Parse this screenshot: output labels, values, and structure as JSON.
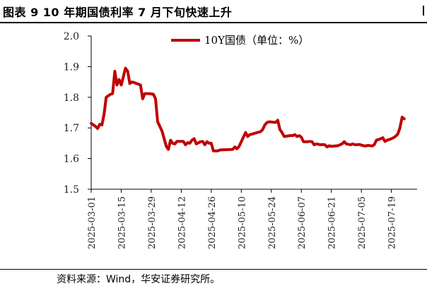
{
  "header": {
    "title": "图表 9 10 年期国债利率 7 月下旬快速上升"
  },
  "footer": {
    "source": "资料来源：Wind，华安证券研究所。"
  },
  "colors": {
    "series": "#c00000",
    "axis": "#000000",
    "text": "#222222"
  },
  "chart_data": {
    "type": "line",
    "legend_position": "top",
    "grid": false,
    "ylim": [
      1.5,
      2.0
    ],
    "yticks": [
      "1.5",
      "1.6",
      "1.7",
      "1.8",
      "1.9",
      "2.0"
    ],
    "xticks": [
      "2025-03-01",
      "2025-03-15",
      "2025-03-29",
      "2025-04-12",
      "2025-04-26",
      "2025-05-10",
      "2025-05-24",
      "2025-06-07",
      "2025-06-21",
      "2025-07-05",
      "2025-07-19"
    ],
    "series": [
      {
        "name": "10Y国债（单位：%）",
        "points": [
          [
            "2025-03-01",
            1.715
          ],
          [
            "2025-03-03",
            1.705
          ],
          [
            "2025-03-04",
            1.698
          ],
          [
            "2025-03-05",
            1.712
          ],
          [
            "2025-03-06",
            1.71
          ],
          [
            "2025-03-07",
            1.745
          ],
          [
            "2025-03-08",
            1.8
          ],
          [
            "2025-03-10",
            1.81
          ],
          [
            "2025-03-11",
            1.812
          ],
          [
            "2025-03-12",
            1.885
          ],
          [
            "2025-03-13",
            1.84
          ],
          [
            "2025-03-14",
            1.858
          ],
          [
            "2025-03-15",
            1.84
          ],
          [
            "2025-03-17",
            1.895
          ],
          [
            "2025-03-18",
            1.885
          ],
          [
            "2025-03-19",
            1.845
          ],
          [
            "2025-03-20",
            1.85
          ],
          [
            "2025-03-21",
            1.848
          ],
          [
            "2025-03-24",
            1.84
          ],
          [
            "2025-03-25",
            1.795
          ],
          [
            "2025-03-26",
            1.812
          ],
          [
            "2025-03-28",
            1.812
          ],
          [
            "2025-03-30",
            1.81
          ],
          [
            "2025-03-31",
            1.795
          ],
          [
            "2025-04-01",
            1.72
          ],
          [
            "2025-04-03",
            1.69
          ],
          [
            "2025-04-05",
            1.64
          ],
          [
            "2025-04-06",
            1.63
          ],
          [
            "2025-04-07",
            1.66
          ],
          [
            "2025-04-08",
            1.65
          ],
          [
            "2025-04-09",
            1.648
          ],
          [
            "2025-04-10",
            1.656
          ],
          [
            "2025-04-13",
            1.656
          ],
          [
            "2025-04-14",
            1.645
          ],
          [
            "2025-04-15",
            1.652
          ],
          [
            "2025-04-16",
            1.65
          ],
          [
            "2025-04-17",
            1.66
          ],
          [
            "2025-04-18",
            1.665
          ],
          [
            "2025-04-19",
            1.648
          ],
          [
            "2025-04-21",
            1.655
          ],
          [
            "2025-04-22",
            1.656
          ],
          [
            "2025-04-23",
            1.645
          ],
          [
            "2025-04-24",
            1.655
          ],
          [
            "2025-04-25",
            1.65
          ],
          [
            "2025-04-26",
            1.65
          ],
          [
            "2025-04-27",
            1.625
          ],
          [
            "2025-04-29",
            1.625
          ],
          [
            "2025-04-30",
            1.628
          ],
          [
            "2025-05-06",
            1.63
          ],
          [
            "2025-05-07",
            1.638
          ],
          [
            "2025-05-08",
            1.632
          ],
          [
            "2025-05-09",
            1.64
          ],
          [
            "2025-05-10",
            1.655
          ],
          [
            "2025-05-11",
            1.67
          ],
          [
            "2025-05-12",
            1.685
          ],
          [
            "2025-05-13",
            1.672
          ],
          [
            "2025-05-14",
            1.678
          ],
          [
            "2025-05-15",
            1.68
          ],
          [
            "2025-05-16",
            1.682
          ],
          [
            "2025-05-19",
            1.688
          ],
          [
            "2025-05-20",
            1.695
          ],
          [
            "2025-05-21",
            1.71
          ],
          [
            "2025-05-22",
            1.718
          ],
          [
            "2025-05-23",
            1.72
          ],
          [
            "2025-05-26",
            1.718
          ],
          [
            "2025-05-27",
            1.725
          ],
          [
            "2025-05-28",
            1.695
          ],
          [
            "2025-05-29",
            1.685
          ],
          [
            "2025-05-30",
            1.672
          ],
          [
            "2025-06-02",
            1.675
          ],
          [
            "2025-06-03",
            1.675
          ],
          [
            "2025-06-04",
            1.678
          ],
          [
            "2025-06-05",
            1.672
          ],
          [
            "2025-06-06",
            1.675
          ],
          [
            "2025-06-07",
            1.67
          ],
          [
            "2025-06-08",
            1.655
          ],
          [
            "2025-06-10",
            1.655
          ],
          [
            "2025-06-11",
            1.656
          ],
          [
            "2025-06-12",
            1.655
          ],
          [
            "2025-06-13",
            1.645
          ],
          [
            "2025-06-14",
            1.648
          ],
          [
            "2025-06-16",
            1.645
          ],
          [
            "2025-06-17",
            1.646
          ],
          [
            "2025-06-18",
            1.645
          ],
          [
            "2025-06-19",
            1.638
          ],
          [
            "2025-06-20",
            1.642
          ],
          [
            "2025-06-21",
            1.64
          ],
          [
            "2025-06-24",
            1.642
          ],
          [
            "2025-06-25",
            1.645
          ],
          [
            "2025-06-26",
            1.648
          ],
          [
            "2025-06-27",
            1.655
          ],
          [
            "2025-06-28",
            1.648
          ],
          [
            "2025-06-30",
            1.645
          ],
          [
            "2025-07-01",
            1.648
          ],
          [
            "2025-07-02",
            1.645
          ],
          [
            "2025-07-04",
            1.646
          ],
          [
            "2025-07-06",
            1.642
          ],
          [
            "2025-07-07",
            1.641
          ],
          [
            "2025-07-08",
            1.643
          ],
          [
            "2025-07-10",
            1.641
          ],
          [
            "2025-07-11",
            1.645
          ],
          [
            "2025-07-12",
            1.66
          ],
          [
            "2025-07-13",
            1.662
          ],
          [
            "2025-07-14",
            1.665
          ],
          [
            "2025-07-15",
            1.668
          ],
          [
            "2025-07-16",
            1.656
          ],
          [
            "2025-07-17",
            1.66
          ],
          [
            "2025-07-18",
            1.662
          ],
          [
            "2025-07-19",
            1.665
          ],
          [
            "2025-07-20",
            1.668
          ],
          [
            "2025-07-21",
            1.673
          ],
          [
            "2025-07-22",
            1.68
          ],
          [
            "2025-07-23",
            1.7
          ],
          [
            "2025-07-24",
            1.735
          ],
          [
            "2025-07-25",
            1.73
          ]
        ]
      }
    ]
  }
}
